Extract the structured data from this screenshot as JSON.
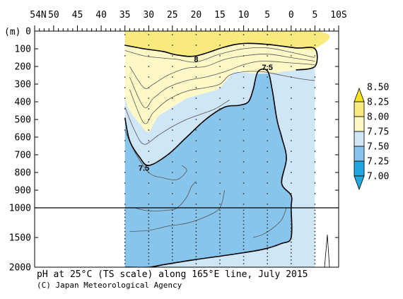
{
  "chart_data": {
    "type": "contour",
    "title": "pH at 25°C (TS scale) along 165°E line, July 2015",
    "credit": "(C) Japan Meteorological Agency",
    "x_axis": {
      "ticks": [
        {
          "label": "54N",
          "lat": 54
        },
        {
          "label": "50",
          "lat": 50
        },
        {
          "label": "45",
          "lat": 45
        },
        {
          "label": "40",
          "lat": 40
        },
        {
          "label": "35",
          "lat": 35
        },
        {
          "label": "30",
          "lat": 30
        },
        {
          "label": "25",
          "lat": 25
        },
        {
          "label": "20",
          "lat": 20
        },
        {
          "label": "15",
          "lat": 15
        },
        {
          "label": "10",
          "lat": 10
        },
        {
          "label": "5",
          "lat": 5
        },
        {
          "label": "0",
          "lat": 0
        },
        {
          "label": "5",
          "lat": -5
        },
        {
          "label": "10S",
          "lat": -10
        }
      ],
      "range": [
        54,
        -10
      ],
      "data_range": [
        35,
        -5
      ]
    },
    "y_axis": {
      "unit_label": "(m)",
      "ticks_upper": [
        0,
        100,
        200,
        300,
        400,
        500,
        600,
        700,
        800,
        900,
        1000
      ],
      "ticks_lower": [
        1500,
        2000
      ],
      "labels": [
        "0",
        "100",
        "200",
        "300",
        "400",
        "500",
        "600",
        "700",
        "800",
        "900",
        "1000",
        "1500",
        "2000"
      ],
      "break_depth": 1000
    },
    "colorbar": {
      "levels": [
        "8.50",
        "8.25",
        "8.00",
        "7.75",
        "7.50",
        "7.25",
        "7.00"
      ],
      "colors": {
        "above_8_25": "#f6e11b",
        "8_00_to_8_25": "#f8ea7c",
        "7_75_to_8_00": "#fdf8c6",
        "7_50_to_7_75": "#cfe6f6",
        "7_25_to_7_50": "#88c5ec",
        "below_7_25": "#22a8e0"
      }
    },
    "contour_labels": [
      {
        "text": "8",
        "lat": 20,
        "depth": 170
      },
      {
        "text": "7.5",
        "lat": 5,
        "depth": 215
      },
      {
        "text": "7.5",
        "lat": 31,
        "depth": 785
      }
    ],
    "field_regions": {
      "ph_8_00_to_8_25": {
        "depth": [
          [
            35,
            0
          ],
          [
            -5,
            0
          ],
          [
            -5,
            100
          ],
          [
            -1,
            95
          ],
          [
            5,
            75
          ],
          [
            10,
            70
          ],
          [
            14,
            90
          ],
          [
            20,
            140
          ],
          [
            24,
            135
          ],
          [
            27,
            115
          ],
          [
            31,
            100
          ],
          [
            35,
            80
          ]
        ]
      },
      "ph_7_75_to_8_00": {
        "depth": [
          [
            35,
            80
          ],
          [
            31,
            100
          ],
          [
            27,
            115
          ],
          [
            24,
            135
          ],
          [
            20,
            140
          ],
          [
            14,
            90
          ],
          [
            10,
            70
          ],
          [
            5,
            75
          ],
          [
            -1,
            95
          ],
          [
            -5,
            100
          ],
          [
            -5,
            200
          ],
          [
            -1,
            220
          ],
          [
            2,
            230
          ],
          [
            5,
            240
          ],
          [
            8,
            240
          ],
          [
            12,
            230
          ],
          [
            15,
            320
          ],
          [
            18,
            350
          ],
          [
            22,
            380
          ],
          [
            25,
            430
          ],
          [
            28,
            480
          ],
          [
            30,
            570
          ],
          [
            32,
            520
          ],
          [
            34,
            450
          ],
          [
            35,
            380
          ]
        ]
      },
      "ph_7_50_to_7_75": {
        "depth": [
          [
            35,
            380
          ],
          [
            34,
            450
          ],
          [
            32,
            520
          ],
          [
            30,
            570
          ],
          [
            28,
            480
          ],
          [
            25,
            430
          ],
          [
            22,
            380
          ],
          [
            18,
            350
          ],
          [
            15,
            320
          ],
          [
            12,
            230
          ],
          [
            8,
            240
          ],
          [
            5,
            240
          ],
          [
            2,
            230
          ],
          [
            -1,
            220
          ],
          [
            -5,
            200
          ],
          [
            -5,
            2000
          ],
          [
            35,
            2000
          ]
        ]
      },
      "ph_7_25_to_7_50": {
        "depth": [
          [
            35,
            490
          ],
          [
            34,
            620
          ],
          [
            32,
            710
          ],
          [
            30,
            760
          ],
          [
            26,
            700
          ],
          [
            22,
            600
          ],
          [
            18,
            500
          ],
          [
            14,
            430
          ],
          [
            11,
            420
          ],
          [
            9,
            400
          ],
          [
            8,
            330
          ],
          [
            7,
            230
          ],
          [
            5,
            225
          ],
          [
            4,
            330
          ],
          [
            3,
            500
          ],
          [
            2,
            600
          ],
          [
            1,
            720
          ],
          [
            2,
            860
          ],
          [
            0,
            930
          ],
          [
            0,
            1000
          ],
          [
            0,
            1500
          ],
          [
            2,
            1600
          ],
          [
            6,
            1700
          ],
          [
            12,
            1780
          ],
          [
            20,
            1870
          ],
          [
            27,
            1960
          ],
          [
            30,
            2000
          ],
          [
            35,
            2000
          ]
        ]
      }
    }
  }
}
